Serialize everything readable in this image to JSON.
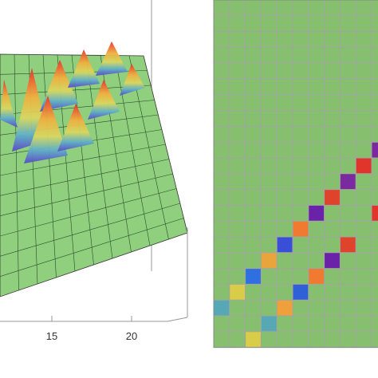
{
  "chart_data": [
    {
      "type": "surface3d",
      "xticks": [
        15,
        20
      ],
      "color": "#8fcf7e"
    },
    {
      "type": "matrix",
      "rows": 22,
      "cols": 11,
      "background": "#86c06e",
      "gridcolor": "#a3a3a3",
      "cells": [
        {
          "col": 10,
          "row": 9,
          "color": "#7a2a9e"
        },
        {
          "col": 9,
          "row": 10,
          "color": "#e0352b"
        },
        {
          "col": 8,
          "row": 11,
          "color": "#7a2a9e"
        },
        {
          "col": 7,
          "row": 12,
          "color": "#e0432b"
        },
        {
          "col": 6,
          "row": 13,
          "color": "#6a22a8"
        },
        {
          "col": 5,
          "row": 14,
          "color": "#f07a30"
        },
        {
          "col": 4,
          "row": 15,
          "color": "#3a4fd8"
        },
        {
          "col": 3,
          "row": 16,
          "color": "#eaa43c"
        },
        {
          "col": 2,
          "row": 17,
          "color": "#2f6fe0"
        },
        {
          "col": 1,
          "row": 18,
          "color": "#d8cc48"
        },
        {
          "col": 0,
          "row": 19,
          "color": "#56a8b4"
        },
        {
          "col": 10,
          "row": 13,
          "color": "#e0352b"
        },
        {
          "col": 8,
          "row": 15,
          "color": "#e0432b"
        },
        {
          "col": 7,
          "row": 16,
          "color": "#6a22a8"
        },
        {
          "col": 6,
          "row": 17,
          "color": "#f07a30"
        },
        {
          "col": 5,
          "row": 18,
          "color": "#3060d8"
        },
        {
          "col": 4,
          "row": 19,
          "color": "#f0a03a"
        },
        {
          "col": 3,
          "row": 20,
          "color": "#56a8b4"
        },
        {
          "col": 2,
          "row": 21,
          "color": "#d8cc48"
        }
      ]
    }
  ]
}
